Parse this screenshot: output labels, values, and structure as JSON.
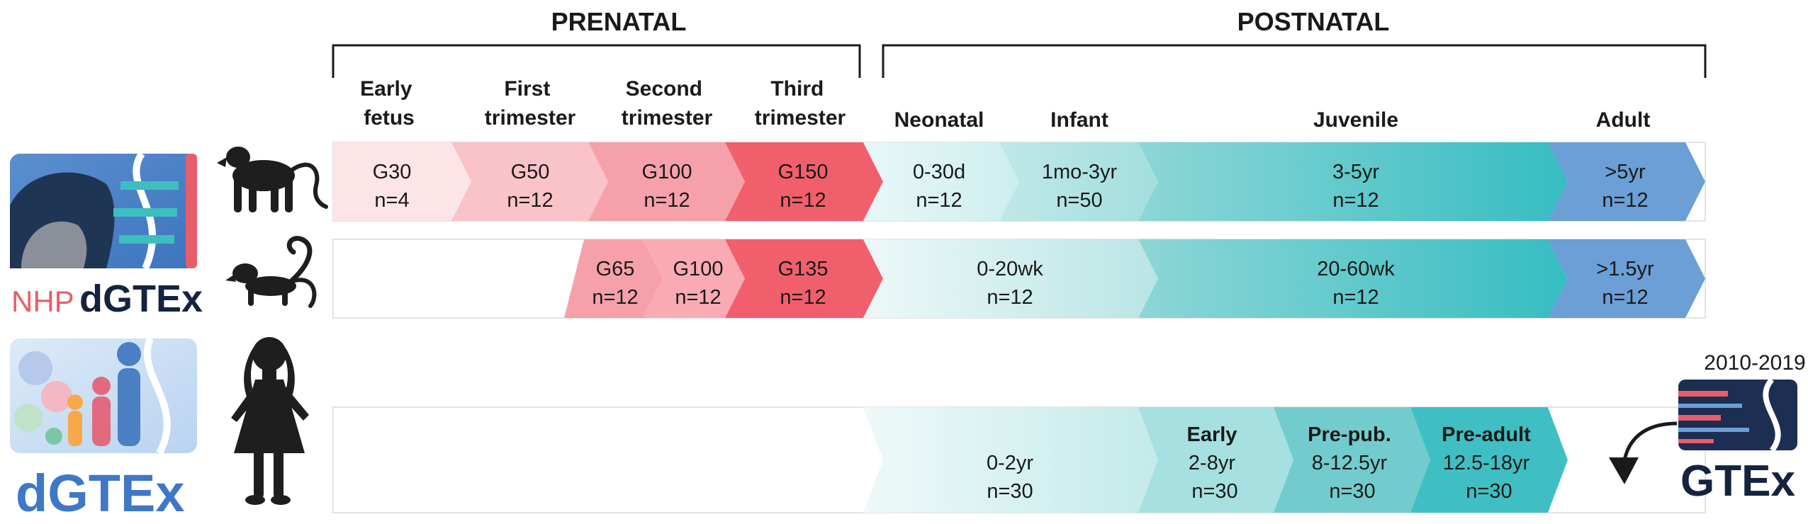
{
  "periods": {
    "prenatal": "PRENATAL",
    "postnatal": "POSTNATAL"
  },
  "stage_headers": {
    "early_fetus": [
      "Early",
      "fetus"
    ],
    "first_trimester": [
      "First",
      "trimester"
    ],
    "second_trimester": [
      "Second",
      "trimester"
    ],
    "third_trimester": [
      "Third",
      "trimester"
    ],
    "neonatal": "Neonatal",
    "infant": "Infant",
    "juvenile": "Juvenile",
    "adult": "Adult"
  },
  "rows": {
    "macaque": [
      {
        "age": "G30",
        "n": "n=4"
      },
      {
        "age": "G50",
        "n": "n=12"
      },
      {
        "age": "G100",
        "n": "n=12"
      },
      {
        "age": "G150",
        "n": "n=12"
      },
      {
        "age": "0-30d",
        "n": "n=12"
      },
      {
        "age": "1mo-3yr",
        "n": "n=50"
      },
      {
        "age": "3-5yr",
        "n": "n=12"
      },
      {
        "age": ">5yr",
        "n": "n=12"
      }
    ],
    "marmoset": [
      {
        "age": "G65",
        "n": "n=12"
      },
      {
        "age": "G100",
        "n": "n=12"
      },
      {
        "age": "G135",
        "n": "n=12"
      },
      {
        "age": "0-20wk",
        "n": "n=12"
      },
      {
        "age": "20-60wk",
        "n": "n=12"
      },
      {
        "age": ">1.5yr",
        "n": "n=12"
      }
    ],
    "human": [
      {
        "label": "",
        "age": "0-2yr",
        "n": "n=30"
      },
      {
        "label": "Early",
        "age": "2-8yr",
        "n": "n=30"
      },
      {
        "label": "Pre-pub.",
        "age": "8-12.5yr",
        "n": "n=30"
      },
      {
        "label": "Pre-adult",
        "age": "12.5-18yr",
        "n": "n=30"
      }
    ]
  },
  "logos": {
    "nhp_prefix": "NHP",
    "nhp_name": "dGTEx",
    "human_name": "dGTEx",
    "gtex_name": "GTEx",
    "gtex_years": "2010-2019"
  },
  "colors": {
    "prenatal_1": "#fce4e7",
    "prenatal_2": "#f9c3c9",
    "prenatal_3": "#f6a1aa",
    "prenatal_4": "#f15f6d",
    "postnatal_light": "#d9f1f1",
    "postnatal_mid": "#a6e0e0",
    "postnatal_dark": "#3fbfc3",
    "adult": "#6b9fd6",
    "logo_nhp_red": "#e85d6a",
    "logo_navy": "#14233f",
    "logo_blue": "#3f78c6"
  },
  "icons": {
    "macaque": "monkey-silhouette-icon",
    "marmoset": "marmoset-silhouette-icon",
    "human": "child-silhouette-icon",
    "arrow": "curved-arrow-icon"
  }
}
